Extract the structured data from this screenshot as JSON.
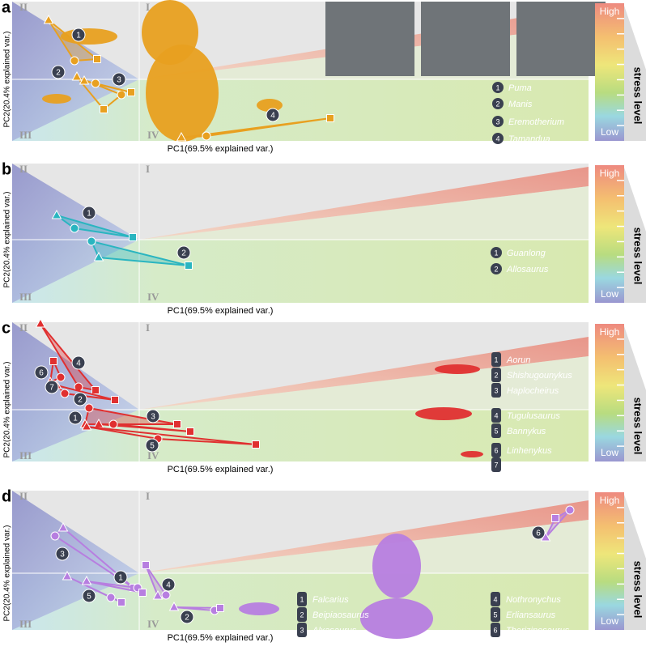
{
  "panels": [
    {
      "letter": "a",
      "color": "#e8a020",
      "x_label": "PC1(69.5% explained var.)",
      "y_label": "PC2(20.4% explained var.)",
      "quadrants": [
        "I",
        "II",
        "III",
        "IV"
      ],
      "colorbar": {
        "high": "High",
        "low": "Low",
        "title": "stress level"
      },
      "legend": [
        {
          "number": "1",
          "name": "Puma"
        },
        {
          "number": "2",
          "name": "Manis"
        },
        {
          "number": "3",
          "name": "Eremotherium"
        },
        {
          "number": "4",
          "name": "Tamandua"
        }
      ]
    },
    {
      "letter": "b",
      "color": "#2ab5c0",
      "x_label": "PC1(69.5% explained var.)",
      "y_label": "PC2(20.4% explained var.)",
      "quadrants": [
        "I",
        "II",
        "III",
        "IV"
      ],
      "colorbar": {
        "high": "High",
        "low": "Low",
        "title": "stress level"
      },
      "legend": [
        {
          "number": "1",
          "name": "Guanlong"
        },
        {
          "number": "2",
          "name": "Allosaurus"
        }
      ]
    },
    {
      "letter": "c",
      "color": "#e03030",
      "x_label": "PC1(69.5% explained var.)",
      "y_label": "PC2(20.4% explained var.)",
      "quadrants": [
        "I",
        "II",
        "III",
        "IV"
      ],
      "colorbar": {
        "high": "High",
        "low": "Low",
        "title": "stress level"
      },
      "legend": [
        {
          "number": "1",
          "name": "Aorun"
        },
        {
          "number": "2",
          "name": "Shishugounykus"
        },
        {
          "number": "3",
          "name": "Haplocheirus"
        },
        {
          "number": "4",
          "name": "Tugulusaurus"
        },
        {
          "number": "5",
          "name": "Bannykus"
        },
        {
          "number": "6",
          "name": "Linhenykus"
        },
        {
          "number": "7",
          "name": "Mononykus"
        }
      ]
    },
    {
      "letter": "d",
      "color": "#b77ee0",
      "x_label": "PC1(69.5% explained var.)",
      "y_label": "PC2(20.4% explained var.)",
      "quadrants": [
        "I",
        "II",
        "III",
        "IV"
      ],
      "colorbar": {
        "high": "High",
        "low": "Low",
        "title": "stress level"
      },
      "legend": [
        {
          "number": "1",
          "name": "Falcarius"
        },
        {
          "number": "2",
          "name": "Beipiaosaurus"
        },
        {
          "number": "3",
          "name": "Alxasaurus"
        },
        {
          "number": "4",
          "name": "Nothronychus"
        },
        {
          "number": "5",
          "name": "Erliansaurus"
        },
        {
          "number": "6",
          "name": "Therizinosaurus"
        }
      ]
    }
  ]
}
